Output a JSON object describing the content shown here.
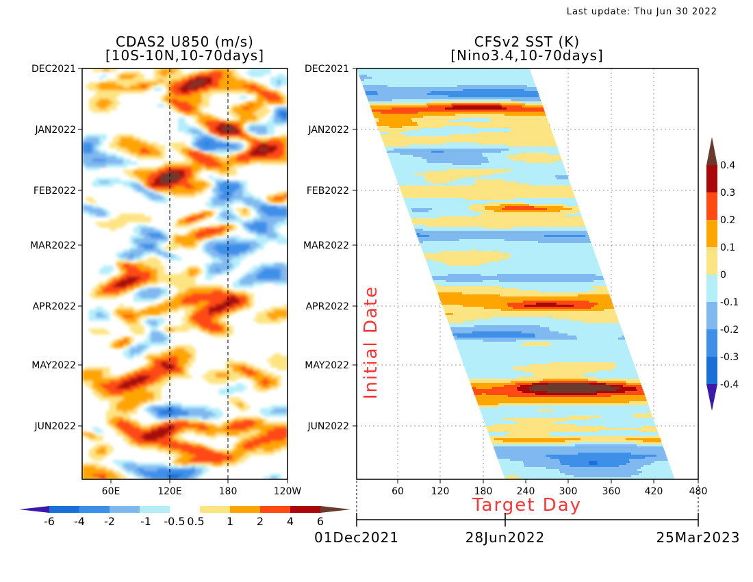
{
  "header": {
    "last_update": "Last update: Thu Jun 30 2022"
  },
  "chart_data": [
    {
      "type": "heatmap",
      "title": "CDAS2 U850 (m/s)",
      "subtitle": "[10S-10N,10-70days]",
      "y_ticks": [
        "DEC2021",
        "JAN2022",
        "FEB2022",
        "MAR2022",
        "APR2022",
        "MAY2022",
        "JUN2022"
      ],
      "x_ticks": [
        "60E",
        "120E",
        "180",
        "120W"
      ],
      "reference_lines": [
        "120E",
        "180"
      ],
      "colorbar": {
        "levels": [
          "-6",
          "-4",
          "-2",
          "-1",
          "-0.5",
          "0.5",
          "1",
          "2",
          "4",
          "6"
        ],
        "colors": [
          "#3a1aa8",
          "#1c6fd6",
          "#3e8fe8",
          "#80b8f0",
          "#b4eefa",
          "#ffffff",
          "#fde482",
          "#ffa500",
          "#ff4a14",
          "#a80808",
          "#6b3a2f"
        ]
      },
      "features": [
        {
          "sign": "positive",
          "value": 4,
          "date": "2021-12-08",
          "lon_e": 150
        },
        {
          "sign": "positive",
          "value": 4,
          "date": "2022-01-01",
          "lon_e": 180
        },
        {
          "sign": "positive",
          "value": 4,
          "date": "2022-01-12",
          "lon_e": 210
        },
        {
          "sign": "positive",
          "value": 4,
          "date": "2022-01-26",
          "lon_e": 120
        },
        {
          "sign": "positive",
          "value": 4,
          "date": "2022-03-20",
          "lon_e": 75
        },
        {
          "sign": "positive",
          "value": 4,
          "date": "2022-04-02",
          "lon_e": 170
        },
        {
          "sign": "positive",
          "value": 4,
          "date": "2022-05-10",
          "lon_e": 80
        },
        {
          "sign": "positive",
          "value": 4,
          "date": "2022-06-03",
          "lon_e": 115
        },
        {
          "sign": "positive",
          "value": 2,
          "date": "2022-06-10",
          "lon_e": 205
        },
        {
          "sign": "negative",
          "value": -2,
          "date": "2022-03-08",
          "lon_e": 75
        },
        {
          "sign": "negative",
          "value": -2,
          "date": "2022-03-15",
          "lon_e": 160
        },
        {
          "sign": "negative",
          "value": -2,
          "date": "2022-06-25",
          "lon_e": 135
        }
      ]
    },
    {
      "type": "heatmap",
      "title": "CFSv2 SST (K)",
      "subtitle": "[Nino3.4,10-70days]",
      "y_ticks": [
        "DEC2021",
        "JAN2022",
        "FEB2022",
        "MAR2022",
        "APR2022",
        "MAY2022",
        "JUN2022"
      ],
      "x_ticks": [
        "60",
        "120",
        "180",
        "240",
        "300",
        "360",
        "420",
        "480"
      ],
      "xlabel": "Target Day",
      "ylabel": "Initial Date",
      "date_axis": [
        "01Dec2021",
        "28Jun2022",
        "25Mar2023"
      ],
      "colorbar": {
        "levels": [
          "0.4",
          "0.3",
          "0.2",
          "0.1",
          "0",
          "-0.1",
          "-0.2",
          "-0.3",
          "-0.4"
        ],
        "colors": [
          "#6b3a2f",
          "#a80808",
          "#ff4a14",
          "#ffa500",
          "#fde482",
          "#b4eefa",
          "#80b8f0",
          "#3e8fe8",
          "#1c6fd6",
          "#3a1aa8"
        ]
      },
      "features": [
        {
          "sign": "positive",
          "value": 0.3,
          "init_date": "2021-12-20",
          "target_day_center": 170
        },
        {
          "sign": "positive",
          "value": 0.2,
          "init_date": "2022-02-10",
          "target_day_center": 220
        },
        {
          "sign": "positive",
          "value": 0.3,
          "init_date": "2022-04-01",
          "target_day_center": 270
        },
        {
          "sign": "positive",
          "value": 0.3,
          "init_date": "2022-05-12",
          "target_day_center": 300
        },
        {
          "sign": "negative",
          "value": -0.2,
          "init_date": "2022-06-20",
          "target_day_center": 330
        }
      ]
    }
  ]
}
